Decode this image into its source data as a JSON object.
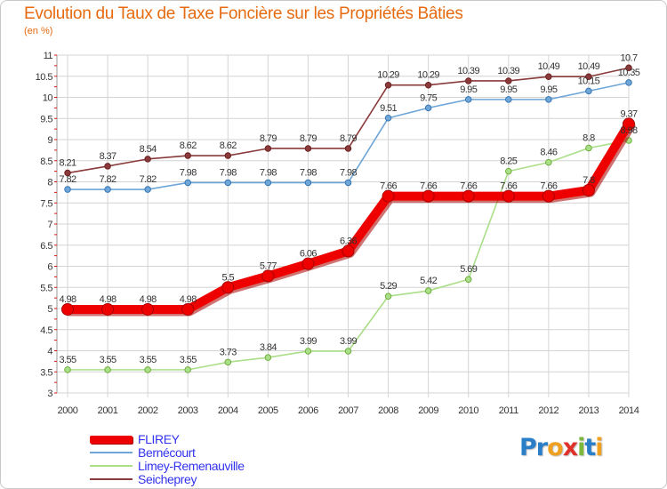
{
  "colors": {
    "title": "#e66a10",
    "legend_text": "#3333ee",
    "grid": "#d4d4d4",
    "axis_text": "#333333"
  },
  "logo": {
    "text": "Proxiti",
    "letters": [
      "P",
      "r",
      "o",
      "x",
      "i",
      "t",
      "i"
    ],
    "letter_colors": [
      "#2a7fc8",
      "#2a7fc8",
      "#f0a020",
      "#e0302a",
      "#7cb83a",
      "#2a7fc8",
      "#f0a020"
    ]
  },
  "chart_data": {
    "type": "line",
    "title": "Evolution du Taux de Taxe Foncière sur les Propriétés Bâties",
    "subtitle": "(en %)",
    "xlabel": "",
    "ylabel": "",
    "ylim": [
      3,
      11
    ],
    "yticks": [
      "3",
      "3.5",
      "4",
      "4.5",
      "5",
      "5.5",
      "6",
      "6.5",
      "7",
      "7.5",
      "8",
      "8.5",
      "9",
      "9.5",
      "10",
      "10.5",
      "11"
    ],
    "categories": [
      "2000",
      "2001",
      "2002",
      "2003",
      "2004",
      "2005",
      "2006",
      "2007",
      "2008",
      "2009",
      "2010",
      "2011",
      "2012",
      "2013",
      "2014"
    ],
    "grid": true,
    "legend_position": "bottom-left",
    "series": [
      {
        "name": "FLIREY",
        "color": "#ee0000",
        "dark": "#aa0000",
        "values": [
          4.98,
          4.98,
          4.98,
          4.98,
          5.5,
          5.77,
          6.06,
          6.36,
          7.66,
          7.66,
          7.66,
          7.66,
          7.66,
          7.8,
          9.37
        ],
        "labels": [
          "4.98",
          "4.98",
          "4.98",
          "4.98",
          "5.5",
          "5.77",
          "6.06",
          "6.36",
          "7.66",
          "7.66",
          "7.66",
          "7.66",
          "7.66",
          "7.8",
          "9.37"
        ]
      },
      {
        "name": "Bernécourt",
        "color": "#6ea6d8",
        "dark": "#3070b0",
        "values": [
          7.82,
          7.82,
          7.82,
          7.98,
          7.98,
          7.98,
          7.98,
          7.98,
          9.51,
          9.75,
          9.95,
          9.95,
          9.95,
          10.15,
          10.35
        ],
        "labels": [
          "7.82",
          "7.82",
          "7.82",
          "7.98",
          "7.98",
          "7.98",
          "7.98",
          "7.98",
          "9.51",
          "9.75",
          "9.95",
          "9.95",
          "9.95",
          "10.15",
          "10.35"
        ]
      },
      {
        "name": "Limey-Remenauville",
        "color": "#aade88",
        "dark": "#66aa33",
        "values": [
          3.55,
          3.55,
          3.55,
          3.55,
          3.73,
          3.84,
          3.99,
          3.99,
          5.29,
          5.42,
          5.69,
          8.25,
          8.46,
          8.8,
          8.98
        ],
        "labels": [
          "3.55",
          "3.55",
          "3.55",
          "3.55",
          "3.73",
          "3.84",
          "3.99",
          "3.99",
          "5.29",
          "5.42",
          "5.69",
          "8.25",
          "8.46",
          "8.8",
          "8.98"
        ]
      },
      {
        "name": "Seicheprey",
        "color": "#8a3a3a",
        "dark": "#6a1f1f",
        "values": [
          8.21,
          8.37,
          8.54,
          8.62,
          8.62,
          8.79,
          8.79,
          8.79,
          10.29,
          10.29,
          10.39,
          10.39,
          10.49,
          10.49,
          10.7
        ],
        "labels": [
          "8.21",
          "8.37",
          "8.54",
          "8.62",
          "8.62",
          "8.79",
          "8.79",
          "8.79",
          "10.29",
          "10.29",
          "10.39",
          "10.39",
          "10.49",
          "10.49",
          "10.7"
        ]
      }
    ]
  }
}
